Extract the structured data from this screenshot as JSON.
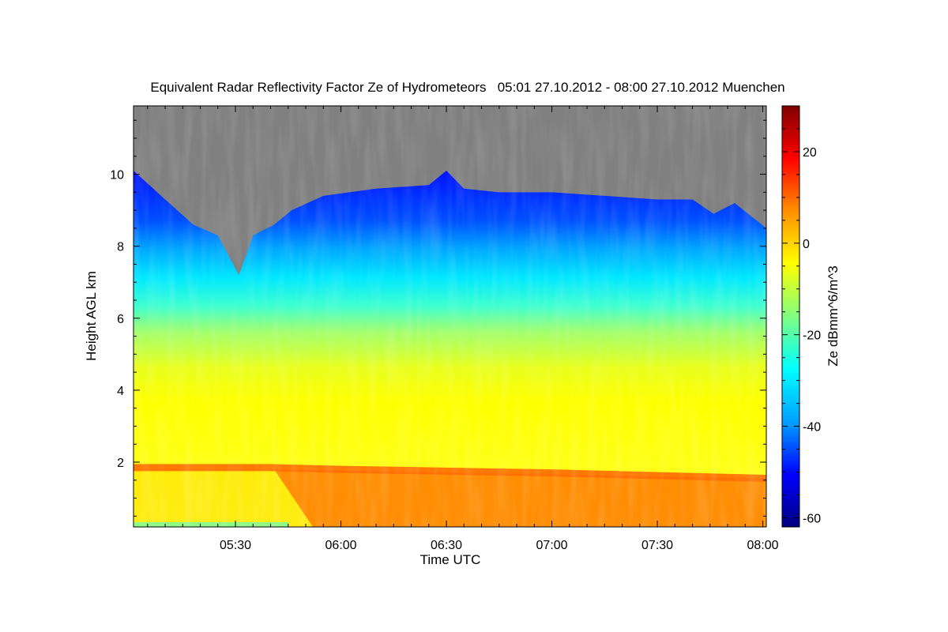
{
  "chart_data": {
    "type": "heatmap",
    "title": "Equivalent Radar Reflectivity Factor Ze of Hydrometeors   05:01 27.10.2012 - 08:00 27.10.2012 Muenchen",
    "xlabel": "Time UTC",
    "ylabel": "Height AGL km",
    "x_ticks": [
      "05:30",
      "06:00",
      "06:30",
      "07:00",
      "07:30",
      "08:00"
    ],
    "x_tick_minutes": [
      330,
      360,
      390,
      420,
      450,
      480
    ],
    "xlim_minutes": [
      301,
      481
    ],
    "y_ticks": [
      2,
      4,
      6,
      8,
      10
    ],
    "ylim": [
      0.2,
      11.9
    ],
    "colorbar": {
      "label": "Ze dBmm^6/m^3",
      "ticks": [
        20,
        0,
        -20,
        -40,
        -60
      ],
      "range": [
        -62,
        30
      ],
      "colors": [
        "#000080",
        "#0000ff",
        "#00a0ff",
        "#00ffff",
        "#80ff80",
        "#ffff00",
        "#ff9000",
        "#ff0000",
        "#800000"
      ]
    },
    "no_data_color": "#808080",
    "cloud_top_profile": {
      "time_minutes": [
        301,
        310,
        318,
        325,
        331,
        335,
        341,
        346,
        355,
        370,
        385,
        390,
        395,
        405,
        420,
        435,
        450,
        460,
        466,
        472,
        481
      ],
      "top_km": [
        10.1,
        9.3,
        8.6,
        8.3,
        7.2,
        8.3,
        8.6,
        9.0,
        9.4,
        9.6,
        9.7,
        10.1,
        9.6,
        9.5,
        9.5,
        9.4,
        9.3,
        9.3,
        8.9,
        9.2,
        8.5
      ]
    },
    "melting_layer": {
      "time_minutes": [
        301,
        340,
        360,
        420,
        481
      ],
      "height_km": [
        1.85,
        1.85,
        1.8,
        1.7,
        1.55
      ]
    }
  }
}
